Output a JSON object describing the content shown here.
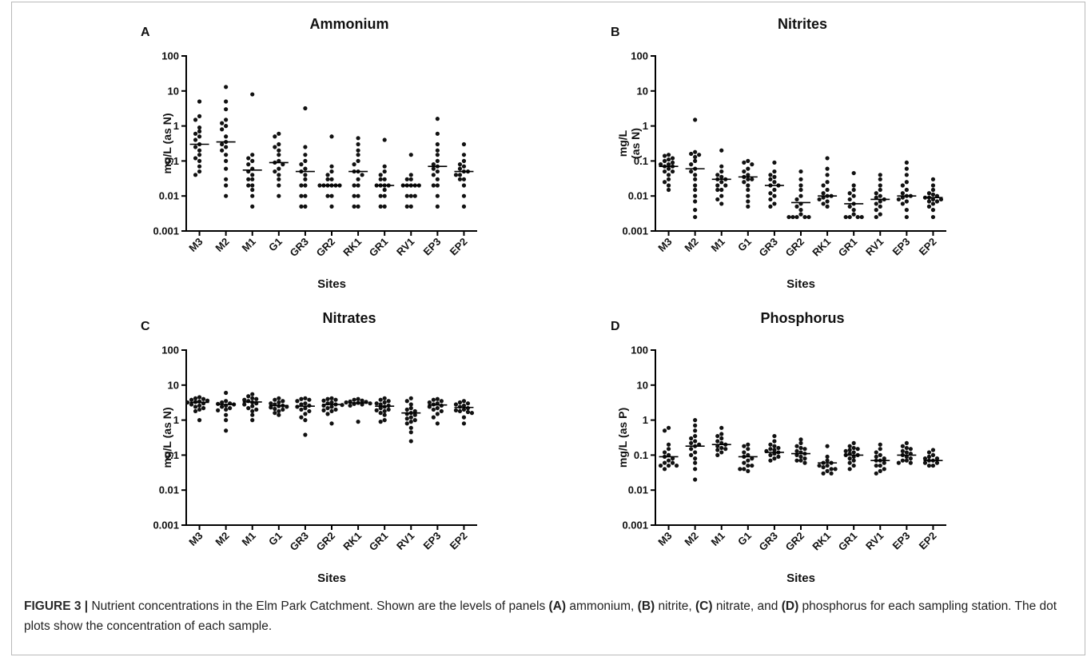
{
  "figure": {
    "caption_label": "FIGURE 3 |",
    "caption_parts": [
      {
        "t": " Nutrient concentrations in the Elm Park Catchment. Shown are the levels of panels ",
        "b": false
      },
      {
        "t": "(A)",
        "b": true
      },
      {
        "t": " ammonium, ",
        "b": false
      },
      {
        "t": "(B)",
        "b": true
      },
      {
        "t": " nitrite, ",
        "b": false
      },
      {
        "t": "(C)",
        "b": true
      },
      {
        "t": " nitrate, and ",
        "b": false
      },
      {
        "t": "(D)",
        "b": true
      },
      {
        "t": " phosphorus for each sampling station. The dot plots show the concentration of each sample.",
        "b": false
      }
    ]
  },
  "chart_data": [
    {
      "panel": "A",
      "type": "scatter",
      "title": "Ammonium",
      "xlabel": "Sites",
      "ylabel": "mg/L (as N)",
      "yscale": "log",
      "ylim": [
        0.001,
        100
      ],
      "yticks": [
        "0.001",
        "0.01",
        "0.1",
        "1",
        "10",
        "100"
      ],
      "categories": [
        "M3",
        "M2",
        "M1",
        "G1",
        "GR3",
        "GR2",
        "RK1",
        "GR1",
        "RV1",
        "EP3",
        "EP2"
      ],
      "medians": [
        0.3,
        0.35,
        0.055,
        0.09,
        0.05,
        0.02,
        0.05,
        0.02,
        0.02,
        0.07,
        0.05
      ],
      "points": [
        [
          5,
          1.9,
          1.5,
          0.9,
          0.7,
          0.6,
          0.5,
          0.4,
          0.3,
          0.25,
          0.2,
          0.15,
          0.12,
          0.1,
          0.07,
          0.05,
          0.04
        ],
        [
          13,
          5,
          3,
          1.5,
          1.2,
          1,
          0.8,
          0.5,
          0.35,
          0.3,
          0.25,
          0.2,
          0.15,
          0.1,
          0.06,
          0.03,
          0.02,
          0.01
        ],
        [
          8,
          0.15,
          0.12,
          0.1,
          0.08,
          0.06,
          0.05,
          0.04,
          0.03,
          0.03,
          0.02,
          0.02,
          0.015,
          0.01,
          0.005
        ],
        [
          0.6,
          0.5,
          0.3,
          0.25,
          0.2,
          0.15,
          0.1,
          0.09,
          0.08,
          0.06,
          0.05,
          0.04,
          0.03,
          0.02,
          0.01
        ],
        [
          3.2,
          0.25,
          0.15,
          0.1,
          0.08,
          0.06,
          0.05,
          0.04,
          0.03,
          0.02,
          0.02,
          0.01,
          0.01,
          0.005,
          0.005
        ],
        [
          0.5,
          0.07,
          0.05,
          0.04,
          0.03,
          0.03,
          0.02,
          0.02,
          0.02,
          0.02,
          0.02,
          0.02,
          0.01,
          0.01,
          0.005
        ],
        [
          0.45,
          0.3,
          0.2,
          0.15,
          0.1,
          0.08,
          0.05,
          0.05,
          0.04,
          0.03,
          0.02,
          0.02,
          0.01,
          0.01,
          0.005,
          0.005
        ],
        [
          0.4,
          0.07,
          0.05,
          0.04,
          0.03,
          0.03,
          0.02,
          0.02,
          0.02,
          0.02,
          0.015,
          0.01,
          0.01,
          0.005,
          0.005
        ],
        [
          0.15,
          0.04,
          0.03,
          0.03,
          0.02,
          0.02,
          0.02,
          0.02,
          0.02,
          0.01,
          0.01,
          0.01,
          0.005,
          0.005
        ],
        [
          1.6,
          0.6,
          0.3,
          0.2,
          0.15,
          0.1,
          0.08,
          0.07,
          0.06,
          0.05,
          0.04,
          0.03,
          0.02,
          0.02,
          0.01,
          0.005
        ],
        [
          0.3,
          0.15,
          0.1,
          0.08,
          0.07,
          0.06,
          0.05,
          0.05,
          0.04,
          0.04,
          0.03,
          0.03,
          0.02,
          0.01,
          0.005
        ]
      ]
    },
    {
      "panel": "B",
      "type": "scatter",
      "title": "Nitrites",
      "xlabel": "Sites",
      "ylabel_lines": [
        "mg/L",
        "(as N)"
      ],
      "yscale": "log",
      "ylim": [
        0.001,
        100
      ],
      "yticks": [
        "0.001",
        "0.01",
        "0.1",
        "1",
        "10",
        "100"
      ],
      "categories": [
        "M3",
        "M2",
        "M1",
        "G1",
        "GR3",
        "GR2",
        "RK1",
        "GR1",
        "RV1",
        "EP3",
        "EP2"
      ],
      "medians": [
        0.07,
        0.06,
        0.03,
        0.035,
        0.02,
        0.0065,
        0.01,
        0.006,
        0.008,
        0.01,
        0.009
      ],
      "points": [
        [
          0.15,
          0.14,
          0.12,
          0.11,
          0.1,
          0.09,
          0.08,
          0.08,
          0.07,
          0.07,
          0.06,
          0.05,
          0.05,
          0.04,
          0.03,
          0.025,
          0.02,
          0.015
        ],
        [
          1.5,
          0.18,
          0.16,
          0.15,
          0.13,
          0.1,
          0.08,
          0.06,
          0.05,
          0.04,
          0.03,
          0.02,
          0.015,
          0.01,
          0.007,
          0.004,
          0.0025
        ],
        [
          0.2,
          0.07,
          0.05,
          0.04,
          0.035,
          0.03,
          0.03,
          0.025,
          0.02,
          0.02,
          0.015,
          0.015,
          0.01,
          0.008,
          0.006
        ],
        [
          0.1,
          0.09,
          0.08,
          0.06,
          0.05,
          0.04,
          0.035,
          0.03,
          0.03,
          0.025,
          0.02,
          0.015,
          0.01,
          0.007,
          0.005
        ],
        [
          0.09,
          0.05,
          0.04,
          0.035,
          0.03,
          0.025,
          0.02,
          0.02,
          0.015,
          0.012,
          0.01,
          0.008,
          0.006,
          0.005
        ],
        [
          0.05,
          0.03,
          0.02,
          0.015,
          0.01,
          0.008,
          0.006,
          0.005,
          0.004,
          0.003,
          0.0025,
          0.0025,
          0.0025,
          0.0025,
          0.0025
        ],
        [
          0.12,
          0.06,
          0.04,
          0.025,
          0.02,
          0.015,
          0.012,
          0.01,
          0.01,
          0.009,
          0.008,
          0.007,
          0.006,
          0.005
        ],
        [
          0.045,
          0.02,
          0.015,
          0.012,
          0.01,
          0.008,
          0.006,
          0.005,
          0.004,
          0.003,
          0.0025,
          0.0025,
          0.0025,
          0.0025
        ],
        [
          0.04,
          0.03,
          0.02,
          0.015,
          0.012,
          0.01,
          0.009,
          0.008,
          0.007,
          0.006,
          0.005,
          0.004,
          0.003,
          0.0025
        ],
        [
          0.09,
          0.06,
          0.04,
          0.025,
          0.02,
          0.015,
          0.012,
          0.01,
          0.01,
          0.009,
          0.008,
          0.007,
          0.006,
          0.004,
          0.0025
        ],
        [
          0.03,
          0.02,
          0.015,
          0.012,
          0.011,
          0.01,
          0.009,
          0.009,
          0.008,
          0.008,
          0.007,
          0.007,
          0.006,
          0.005,
          0.004,
          0.0025
        ]
      ]
    },
    {
      "panel": "C",
      "type": "scatter",
      "title": "Nitrates",
      "xlabel": "Sites",
      "ylabel": "mg/L (as N)",
      "yscale": "log",
      "ylim": [
        0.001,
        100
      ],
      "yticks": [
        "0.001",
        "0.01",
        "0.1",
        "1",
        "10",
        "100"
      ],
      "categories": [
        "M3",
        "M2",
        "M1",
        "G1",
        "GR3",
        "GR2",
        "RK1",
        "GR1",
        "RV1",
        "EP3",
        "EP2"
      ],
      "medians": [
        3.2,
        2.8,
        3.3,
        2.6,
        2.5,
        2.8,
        3.1,
        2.5,
        1.6,
        2.7,
        2.3
      ],
      "points": [
        [
          4.5,
          4.2,
          4,
          3.8,
          3.6,
          3.4,
          3.3,
          3.2,
          3,
          2.8,
          2.6,
          2.4,
          2.2,
          2,
          1.8,
          1
        ],
        [
          6,
          3.5,
          3.2,
          3,
          2.9,
          2.8,
          2.6,
          2.4,
          2.2,
          2,
          1.9,
          1.4,
          1,
          0.5
        ],
        [
          5.5,
          4.8,
          4.2,
          4,
          3.8,
          3.5,
          3.2,
          3,
          2.8,
          2.5,
          2.2,
          2,
          1.8,
          1.4,
          1
        ],
        [
          4.2,
          3.8,
          3.5,
          3.2,
          3,
          2.8,
          2.6,
          2.5,
          2.4,
          2.3,
          2.1,
          2,
          1.8,
          1.6,
          1.4
        ],
        [
          4.2,
          4,
          3.8,
          3.5,
          3,
          2.8,
          2.6,
          2.4,
          2.2,
          2,
          1.8,
          1.5,
          1.2,
          1,
          0.38
        ],
        [
          4.2,
          4,
          3.8,
          3.6,
          3.2,
          3,
          2.8,
          2.6,
          2.4,
          2.2,
          2,
          1.9,
          1.8,
          1.5,
          0.8
        ],
        [
          4,
          3.8,
          3.6,
          3.4,
          3.3,
          3.2,
          3.1,
          3,
          2.9,
          2.8,
          2.7,
          2.6,
          0.9
        ],
        [
          4.2,
          3.8,
          3.5,
          3.2,
          3,
          2.8,
          2.6,
          2.4,
          2.2,
          2,
          1.9,
          1.8,
          1.6,
          1.4,
          1,
          0.9
        ],
        [
          4.2,
          3.5,
          2.8,
          2.2,
          2,
          1.8,
          1.6,
          1.5,
          1.4,
          1.2,
          1.1,
          1,
          0.9,
          0.8,
          0.6,
          0.45,
          0.25
        ],
        [
          4,
          3.8,
          3.5,
          3.2,
          3,
          2.8,
          2.6,
          2.4,
          2.2,
          2,
          1.8,
          1.5,
          1.2,
          0.8
        ],
        [
          3.5,
          3.2,
          3,
          2.8,
          2.6,
          2.4,
          2.2,
          2,
          1.9,
          1.8,
          1.7,
          1.6,
          1.2,
          0.8
        ]
      ]
    },
    {
      "panel": "D",
      "type": "scatter",
      "title": "Phosphorus",
      "xlabel": "Sites",
      "ylabel": "mg/L (as P)",
      "yscale": "log",
      "ylim": [
        0.001,
        100
      ],
      "yticks": [
        "0.001",
        "0.01",
        "0.1",
        "1",
        "10",
        "100"
      ],
      "categories": [
        "M3",
        "M2",
        "M1",
        "G1",
        "GR3",
        "GR2",
        "RK1",
        "GR1",
        "RV1",
        "EP3",
        "EP2"
      ],
      "medians": [
        0.09,
        0.18,
        0.2,
        0.09,
        0.12,
        0.11,
        0.06,
        0.1,
        0.07,
        0.1,
        0.07
      ],
      "points": [
        [
          0.6,
          0.5,
          0.2,
          0.15,
          0.12,
          0.1,
          0.09,
          0.08,
          0.07,
          0.06,
          0.06,
          0.05,
          0.05,
          0.05,
          0.04
        ],
        [
          1,
          0.7,
          0.5,
          0.35,
          0.3,
          0.25,
          0.22,
          0.2,
          0.18,
          0.15,
          0.12,
          0.1,
          0.08,
          0.06,
          0.04,
          0.02
        ],
        [
          0.6,
          0.4,
          0.35,
          0.3,
          0.25,
          0.22,
          0.2,
          0.18,
          0.16,
          0.15,
          0.14,
          0.12,
          0.1
        ],
        [
          0.2,
          0.18,
          0.15,
          0.12,
          0.1,
          0.09,
          0.08,
          0.07,
          0.06,
          0.05,
          0.05,
          0.04,
          0.04,
          0.035
        ],
        [
          0.35,
          0.25,
          0.2,
          0.18,
          0.16,
          0.15,
          0.14,
          0.13,
          0.12,
          0.11,
          0.1,
          0.09,
          0.08,
          0.07
        ],
        [
          0.28,
          0.22,
          0.18,
          0.16,
          0.15,
          0.13,
          0.12,
          0.11,
          0.1,
          0.09,
          0.08,
          0.07,
          0.07,
          0.06
        ],
        [
          0.18,
          0.09,
          0.07,
          0.06,
          0.06,
          0.05,
          0.05,
          0.045,
          0.04,
          0.04,
          0.035,
          0.03,
          0.03
        ],
        [
          0.22,
          0.18,
          0.16,
          0.15,
          0.14,
          0.13,
          0.12,
          0.11,
          0.1,
          0.1,
          0.09,
          0.08,
          0.07,
          0.06,
          0.05,
          0.04
        ],
        [
          0.2,
          0.15,
          0.12,
          0.1,
          0.09,
          0.08,
          0.07,
          0.07,
          0.06,
          0.05,
          0.05,
          0.04,
          0.035,
          0.03
        ],
        [
          0.22,
          0.18,
          0.16,
          0.15,
          0.13,
          0.12,
          0.11,
          0.1,
          0.09,
          0.08,
          0.07,
          0.07,
          0.06,
          0.06
        ],
        [
          0.14,
          0.12,
          0.1,
          0.09,
          0.08,
          0.08,
          0.07,
          0.07,
          0.06,
          0.06,
          0.05,
          0.05
        ]
      ]
    }
  ]
}
